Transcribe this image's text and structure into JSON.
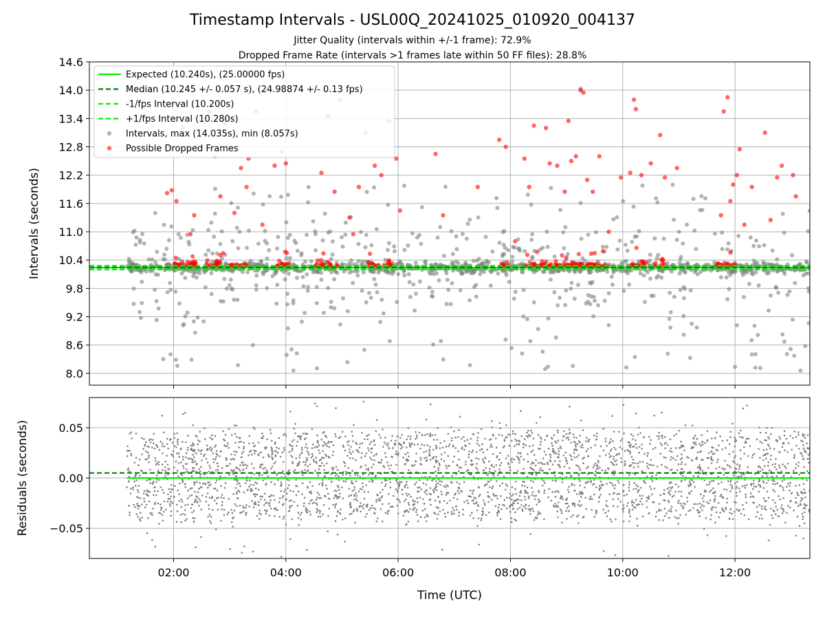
{
  "header": {
    "title": "Timestamp Intervals - USL00Q_20241025_010920_004137",
    "subtitle1": "Jitter Quality (intervals within +/-1 frame): 72.9%",
    "subtitle2": "Dropped Frame Rate (intervals >1 frames late within 50 FF files): 28.8%"
  },
  "colors": {
    "expected": "#00ee00",
    "median": "#008000",
    "fps_interval": "#00ee00",
    "intervals": "#808080",
    "dropped": "#ff0000",
    "grid": "#b0b0b0"
  },
  "chart_data": [
    {
      "type": "scatter",
      "title": "Timestamp Intervals - USL00Q_20241025_010920_004137",
      "xlabel": "Time (UTC)",
      "ylabel": "Intervals (seconds)",
      "xlim": [
        "00:30",
        "13:20"
      ],
      "ylim": [
        7.75,
        14.6
      ],
      "x_ticks": [
        "02:00",
        "04:00",
        "06:00",
        "08:00",
        "10:00",
        "12:00"
      ],
      "y_ticks": [
        "8.0",
        "8.6",
        "9.2",
        "9.8",
        "10.4",
        "11.0",
        "11.6",
        "12.2",
        "12.8",
        "13.4",
        "14.0",
        "14.6"
      ],
      "grid": true,
      "legend_position": "top-left",
      "data_start": "01:10",
      "data_end": "13:20",
      "series": [
        {
          "name": "Expected (10.240s), (25.00000 fps)",
          "kind": "hline",
          "y": 10.24,
          "style": "solid"
        },
        {
          "name": "Median (10.245 +/- 0.057 s), (24.98874 +/- 0.13 fps)",
          "kind": "hline",
          "y": 10.245,
          "style": "dashed"
        },
        {
          "name": "-1/fps Interval (10.200s)",
          "kind": "hline",
          "y": 10.2,
          "style": "dashed"
        },
        {
          "name": "+1/fps Interval (10.280s)",
          "kind": "hline",
          "y": 10.28,
          "style": "dashed"
        },
        {
          "name": "Intervals, max (14.035s), min (8.057s)",
          "kind": "points",
          "max": 14.035,
          "min": 8.057
        },
        {
          "name": "Possible Dropped Frames",
          "kind": "points",
          "points": [
            [
              "01:53",
              11.82
            ],
            [
              "01:58",
              11.88
            ],
            [
              "02:03",
              11.65
            ],
            [
              "02:10",
              13.2
            ],
            [
              "02:18",
              10.95
            ],
            [
              "02:22",
              11.35
            ],
            [
              "02:25",
              12.8
            ],
            [
              "02:38",
              13.55
            ],
            [
              "02:44",
              12.6
            ],
            [
              "02:50",
              11.75
            ],
            [
              "02:55",
              13.3
            ],
            [
              "03:05",
              11.4
            ],
            [
              "03:12",
              12.35
            ],
            [
              "03:18",
              11.95
            ],
            [
              "03:20",
              12.55
            ],
            [
              "03:28",
              13.55
            ],
            [
              "03:35",
              11.15
            ],
            [
              "03:48",
              12.4
            ],
            [
              "03:55",
              12.7
            ],
            [
              "04:00",
              12.45
            ],
            [
              "04:38",
              12.25
            ],
            [
              "04:45",
              13.45
            ],
            [
              "04:52",
              11.85
            ],
            [
              "04:58",
              13.8
            ],
            [
              "05:08",
              11.3
            ],
            [
              "05:12",
              10.95
            ],
            [
              "05:18",
              11.95
            ],
            [
              "05:25",
              13.1
            ],
            [
              "05:35",
              12.4
            ],
            [
              "05:42",
              12.2
            ],
            [
              "05:50",
              13.35
            ],
            [
              "05:58",
              12.55
            ],
            [
              "06:02",
              11.45
            ],
            [
              "06:40",
              12.65
            ],
            [
              "06:48",
              11.35
            ],
            [
              "07:25",
              11.95
            ],
            [
              "07:48",
              12.95
            ],
            [
              "07:55",
              12.8
            ],
            [
              "08:05",
              10.8
            ],
            [
              "08:15",
              12.55
            ],
            [
              "08:20",
              11.95
            ],
            [
              "08:25",
              13.25
            ],
            [
              "08:38",
              13.2
            ],
            [
              "08:42",
              12.45
            ],
            [
              "08:50",
              12.4
            ],
            [
              "08:58",
              11.85
            ],
            [
              "09:02",
              13.35
            ],
            [
              "09:05",
              12.5
            ],
            [
              "09:10",
              12.6
            ],
            [
              "09:15",
              14.0
            ],
            [
              "09:18",
              13.95
            ],
            [
              "09:22",
              12.1
            ],
            [
              "09:28",
              11.85
            ],
            [
              "09:35",
              12.6
            ],
            [
              "09:45",
              11.0
            ],
            [
              "09:58",
              12.15
            ],
            [
              "10:08",
              12.25
            ],
            [
              "10:12",
              13.8
            ],
            [
              "10:14",
              13.6
            ],
            [
              "10:20",
              12.2
            ],
            [
              "10:30",
              12.45
            ],
            [
              "10:40",
              13.05
            ],
            [
              "10:45",
              12.15
            ],
            [
              "10:58",
              12.35
            ],
            [
              "11:45",
              11.35
            ],
            [
              "11:48",
              13.55
            ],
            [
              "11:52",
              13.85
            ],
            [
              "11:55",
              11.65
            ],
            [
              "11:58",
              12.0
            ],
            [
              "12:02",
              12.2
            ],
            [
              "12:05",
              12.75
            ],
            [
              "12:10",
              11.15
            ],
            [
              "12:18",
              11.95
            ],
            [
              "12:32",
              13.1
            ],
            [
              "12:38",
              11.25
            ],
            [
              "12:45",
              12.15
            ],
            [
              "12:50",
              12.4
            ],
            [
              "13:02",
              12.2
            ],
            [
              "13:05",
              11.75
            ]
          ]
        }
      ]
    },
    {
      "type": "scatter",
      "xlabel": "Time (UTC)",
      "ylabel": "Residuals (seconds)",
      "xlim": [
        "00:30",
        "13:20"
      ],
      "ylim": [
        -0.08,
        0.08
      ],
      "x_ticks": [
        "02:00",
        "04:00",
        "06:00",
        "08:00",
        "10:00",
        "12:00"
      ],
      "y_ticks": [
        "0.05",
        "0.00",
        "−0.05"
      ],
      "grid": true,
      "series": [
        {
          "kind": "hline",
          "y": 0.0,
          "style": "solid"
        },
        {
          "kind": "hline",
          "y": 0.005,
          "style": "dashed"
        },
        {
          "kind": "points",
          "approx_range": [
            -0.08,
            0.08
          ],
          "typical_range": [
            -0.04,
            0.045
          ]
        }
      ]
    }
  ]
}
